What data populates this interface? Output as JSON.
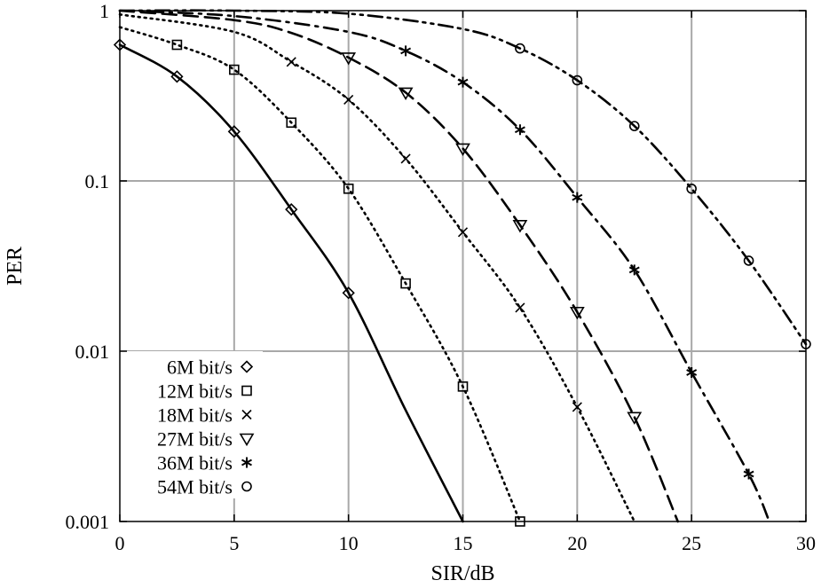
{
  "chart_data": {
    "type": "line",
    "xlabel": "SIR/dB",
    "ylabel": "PER",
    "xlim": [
      0,
      30
    ],
    "ylim": [
      0.001,
      1
    ],
    "yscale": "log",
    "grid": true,
    "legend_position": "bottom-left",
    "x_ticks": [
      0,
      5,
      10,
      15,
      20,
      25,
      30
    ],
    "x_tick_labels": [
      "0",
      "5",
      "10",
      "15",
      "20",
      "25",
      "30"
    ],
    "y_ticks": [
      0.001,
      0.01,
      0.1,
      1
    ],
    "y_tick_labels": [
      "0.001",
      "0.01",
      "0.1",
      "1"
    ],
    "series": [
      {
        "name": "6M bit/s",
        "marker": "diamond",
        "line_style": "solid",
        "x": [
          0,
          2.5,
          5,
          7.5,
          10,
          12.5,
          15
        ],
        "y": [
          0.63,
          0.41,
          0.195,
          0.068,
          0.022,
          0.0045,
          0.001
        ],
        "marker_x": [
          0,
          2.5,
          5,
          7.5,
          10
        ],
        "marker_y": [
          0.63,
          0.41,
          0.195,
          0.068,
          0.022
        ]
      },
      {
        "name": "12M bit/s",
        "marker": "square",
        "line_style": "dotted",
        "x": [
          0,
          2.5,
          5,
          7.5,
          10,
          12.5,
          15,
          17.5
        ],
        "y": [
          0.8,
          0.63,
          0.45,
          0.22,
          0.09,
          0.025,
          0.0062,
          0.001
        ],
        "marker_x": [
          2.5,
          5,
          7.5,
          10,
          12.5,
          15,
          17.5
        ],
        "marker_y": [
          0.63,
          0.45,
          0.22,
          0.09,
          0.025,
          0.0062,
          0.001
        ]
      },
      {
        "name": "18M bit/s",
        "marker": "x",
        "line_style": "dotted",
        "x": [
          0,
          5,
          7.5,
          10,
          12.5,
          15,
          17.5,
          20,
          22.5
        ],
        "y": [
          0.95,
          0.75,
          0.5,
          0.3,
          0.135,
          0.05,
          0.018,
          0.0047,
          0.001
        ],
        "marker_x": [
          7.5,
          10,
          12.5,
          15,
          17.5,
          20
        ],
        "marker_y": [
          0.5,
          0.3,
          0.135,
          0.05,
          0.018,
          0.0047
        ]
      },
      {
        "name": "27M bit/s",
        "marker": "triangle-down",
        "line_style": "dashed",
        "x": [
          0,
          5,
          7.5,
          10,
          12.5,
          15,
          17.5,
          20,
          22.5,
          24.4
        ],
        "y": [
          1.0,
          0.88,
          0.74,
          0.53,
          0.33,
          0.155,
          0.055,
          0.017,
          0.0041,
          0.001
        ],
        "marker_x": [
          10,
          12.5,
          15,
          17.5,
          20,
          22.5
        ],
        "marker_y": [
          0.53,
          0.33,
          0.155,
          0.055,
          0.017,
          0.0041
        ]
      },
      {
        "name": "36M bit/s",
        "marker": "asterisk",
        "line_style": "dash-dot",
        "x": [
          0,
          5,
          10,
          12.5,
          15,
          17.5,
          20,
          22.5,
          25,
          27.5,
          28.4
        ],
        "y": [
          1.0,
          0.93,
          0.75,
          0.58,
          0.38,
          0.2,
          0.08,
          0.03,
          0.0075,
          0.0019,
          0.001
        ],
        "marker_x": [
          12.5,
          15,
          17.5,
          20,
          22.5,
          25,
          27.5
        ],
        "marker_y": [
          0.58,
          0.38,
          0.2,
          0.08,
          0.03,
          0.0075,
          0.0019
        ]
      },
      {
        "name": "54M bit/s",
        "marker": "circle",
        "line_style": "dash-dot-dot",
        "x": [
          0,
          5,
          10,
          15,
          17.5,
          20,
          22.5,
          25,
          27.5,
          30
        ],
        "y": [
          1.0,
          1.0,
          0.96,
          0.78,
          0.6,
          0.39,
          0.21,
          0.09,
          0.034,
          0.011
        ],
        "marker_x": [
          17.5,
          20,
          22.5,
          25,
          27.5,
          30
        ],
        "marker_y": [
          0.6,
          0.39,
          0.21,
          0.09,
          0.034,
          0.011
        ]
      }
    ]
  }
}
